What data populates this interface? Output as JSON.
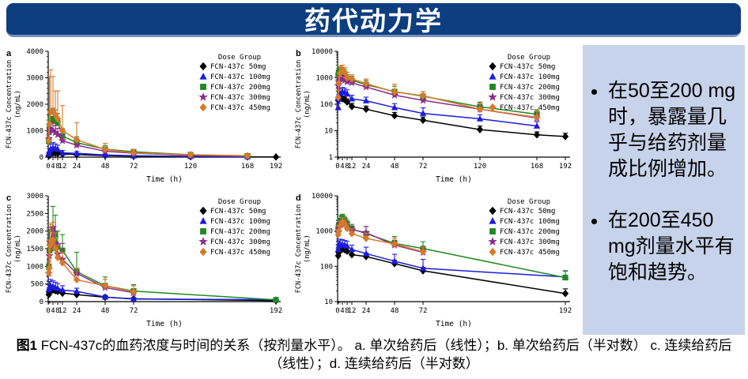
{
  "banner": {
    "title": "药代动力学"
  },
  "colors": {
    "banner_bg": "#0d3e80",
    "banner_text": "#ffffff",
    "sidebar_bg": "#c7d3ea",
    "dose_50mg": "#000000",
    "dose_100mg": "#1c1ce0",
    "dose_200mg": "#1f8a1f",
    "dose_300mg": "#8b2d8b",
    "dose_450mg": "#d7792b"
  },
  "sidebar": {
    "bullets": [
      "在50至200 mg时，暴露量几乎与给药剂量成比例增加。",
      "在200至450 mg剂量水平有饱和趋势。"
    ]
  },
  "caption": {
    "label": "图1",
    "text": " FCN-437c的血药浓度与时间的关系（按剂量水平）。 a. 单次给药后（线性）；b. 单次给药后（半对数）  c. 连续给药后（线性）；d. 连续给药后（半对数）"
  },
  "chart_data": [
    {
      "panel": "a",
      "type": "line",
      "x_scale": "linear",
      "y_scale": "linear",
      "xlabel": "Time (h)",
      "ylabel": [
        "FCN-437c Concentration",
        "(ng/mL)"
      ],
      "xlim": [
        0,
        196
      ],
      "ylim": [
        0,
        4000
      ],
      "x_ticks": [
        0,
        4,
        8,
        12,
        24,
        48,
        72,
        120,
        168,
        192
      ],
      "x_minor": [
        0.5,
        1,
        2,
        6,
        10
      ],
      "y_ticks": [
        0,
        1000,
        2000,
        3000,
        4000
      ],
      "y_minor_step": 200,
      "legend_title": "Dose Group",
      "series": [
        {
          "name": "FCN-437c 50mg",
          "color": "#000000",
          "marker": "diamond",
          "x": [
            0.5,
            1,
            2,
            4,
            6,
            8,
            12,
            24,
            48,
            72,
            120,
            168,
            192
          ],
          "y": [
            60,
            95,
            130,
            160,
            150,
            140,
            120,
            100,
            60,
            38,
            20,
            10,
            6
          ],
          "eu": [
            20,
            30,
            45,
            50,
            45,
            40,
            35,
            30,
            20,
            12,
            8,
            5,
            3
          ]
        },
        {
          "name": "FCN-437c 100mg",
          "color": "#1c1ce0",
          "marker": "triangle",
          "x": [
            0.5,
            1,
            2,
            4,
            6,
            8,
            12,
            24,
            48,
            72,
            120,
            168
          ],
          "y": [
            120,
            210,
            300,
            350,
            330,
            300,
            160,
            145,
            80,
            50,
            28,
            15
          ],
          "eu": [
            60,
            110,
            190,
            200,
            170,
            150,
            90,
            70,
            45,
            25,
            15,
            8
          ]
        },
        {
          "name": "FCN-437c 200mg",
          "color": "#1f8a1f",
          "marker": "square",
          "x": [
            0.5,
            1,
            2,
            4,
            6,
            8,
            12,
            24,
            48,
            72,
            120,
            168
          ],
          "y": [
            600,
            1050,
            1380,
            1450,
            1400,
            1300,
            800,
            550,
            300,
            200,
            90,
            45
          ],
          "eu": [
            250,
            350,
            420,
            400,
            380,
            350,
            280,
            220,
            140,
            90,
            40,
            20
          ]
        },
        {
          "name": "FCN-437c 300mg",
          "color": "#8b2d8b",
          "marker": "star",
          "x": [
            0.5,
            1,
            2,
            4,
            6,
            8,
            12,
            24,
            48,
            72,
            120,
            168
          ],
          "y": [
            700,
            950,
            1050,
            1000,
            930,
            850,
            620,
            450,
            220,
            150,
            70,
            35
          ],
          "eu": [
            200,
            250,
            300,
            280,
            260,
            240,
            200,
            160,
            90,
            60,
            30,
            15
          ]
        },
        {
          "name": "FCN-437c 450mg",
          "color": "#d7792b",
          "marker": "diamond",
          "x": [
            0.5,
            1,
            2,
            4,
            6,
            8,
            12,
            24,
            48,
            72,
            120,
            168
          ],
          "y": [
            620,
            1250,
            1700,
            1750,
            1600,
            1450,
            1000,
            660,
            290,
            160,
            90,
            50
          ],
          "eu": [
            600,
            1800,
            1600,
            1300,
            900,
            1050,
            950,
            640,
            230,
            120,
            60,
            30
          ]
        }
      ]
    },
    {
      "panel": "b",
      "type": "line",
      "x_scale": "linear",
      "y_scale": "log",
      "xlabel": "Time (h)",
      "ylabel": [
        "FCN-437c Concentration",
        "(ng/mL)"
      ],
      "xlim": [
        0,
        196
      ],
      "ylim": [
        1,
        10000
      ],
      "x_ticks": [
        0,
        4,
        8,
        12,
        24,
        48,
        72,
        120,
        168,
        192
      ],
      "x_minor": [
        0.5,
        1,
        2,
        6,
        10
      ],
      "y_ticks": [
        1,
        10,
        100,
        1000,
        10000
      ],
      "legend_title": "Dose Group",
      "series": [
        {
          "name": "FCN-437c 50mg",
          "color": "#000000",
          "marker": "diamond",
          "x": [
            0.5,
            1,
            2,
            4,
            6,
            8,
            12,
            24,
            48,
            72,
            120,
            168,
            192
          ],
          "y": [
            140,
            158,
            165,
            160,
            148,
            122,
            82,
            65,
            37,
            25,
            11,
            7,
            6
          ],
          "eu": [
            40,
            45,
            50,
            45,
            40,
            35,
            25,
            20,
            12,
            8,
            4,
            2,
            2
          ]
        },
        {
          "name": "FCN-437c 100mg",
          "color": "#1c1ce0",
          "marker": "triangle",
          "x": [
            0.5,
            1,
            2,
            4,
            6,
            8,
            12,
            24,
            48,
            72,
            120,
            168
          ],
          "y": [
            75,
            160,
            260,
            300,
            280,
            250,
            160,
            135,
            75,
            45,
            28,
            15
          ],
          "eu": [
            30,
            70,
            120,
            130,
            120,
            100,
            60,
            50,
            30,
            28,
            12,
            7
          ]
        },
        {
          "name": "FCN-437c 200mg",
          "color": "#1f8a1f",
          "marker": "square",
          "x": [
            0.5,
            1,
            2,
            4,
            6,
            8,
            12,
            24,
            48,
            72,
            120,
            168
          ],
          "y": [
            1250,
            1500,
            1600,
            1550,
            1400,
            900,
            800,
            550,
            300,
            200,
            80,
            42
          ],
          "eu": [
            600,
            800,
            900,
            800,
            700,
            400,
            350,
            250,
            180,
            100,
            40,
            20
          ]
        },
        {
          "name": "FCN-437c 300mg",
          "color": "#8b2d8b",
          "marker": "star",
          "x": [
            0.5,
            1,
            2,
            4,
            6,
            8,
            12,
            24,
            48,
            72,
            120,
            168
          ],
          "y": [
            500,
            750,
            900,
            870,
            800,
            700,
            650,
            450,
            220,
            140,
            65,
            30
          ],
          "eu": [
            200,
            300,
            350,
            330,
            300,
            260,
            240,
            180,
            90,
            60,
            30,
            14
          ]
        },
        {
          "name": "FCN-437c 450mg",
          "color": "#d7792b",
          "marker": "diamond",
          "x": [
            0.5,
            1,
            2,
            4,
            6,
            8,
            12,
            24,
            48,
            72,
            120,
            168
          ],
          "y": [
            180,
            620,
            1500,
            1900,
            1600,
            1000,
            900,
            600,
            290,
            210,
            65,
            32
          ],
          "eu": [
            150,
            500,
            1300,
            1100,
            900,
            600,
            400,
            300,
            280,
            90,
            45,
            25
          ]
        }
      ]
    },
    {
      "panel": "c",
      "type": "line",
      "x_scale": "linear",
      "y_scale": "linear",
      "xlabel": "Time (h)",
      "ylabel": [
        "FCN-437c Concentration",
        "(ng/mL)"
      ],
      "xlim": [
        0,
        196
      ],
      "ylim": [
        0,
        3000
      ],
      "x_ticks": [
        0,
        4,
        8,
        12,
        24,
        48,
        72,
        192
      ],
      "x_minor": [
        0.5,
        1,
        2,
        6,
        10
      ],
      "y_ticks": [
        0,
        500,
        1000,
        1500,
        2000,
        2500,
        3000
      ],
      "y_minor_step": 100,
      "legend_title": "Dose Group",
      "series": [
        {
          "name": "FCN-437c 50mg",
          "color": "#000000",
          "marker": "diamond",
          "x": [
            0.5,
            1,
            2,
            4,
            6,
            8,
            12,
            24,
            48,
            72,
            192
          ],
          "y": [
            200,
            260,
            310,
            330,
            310,
            290,
            240,
            200,
            125,
            80,
            30
          ],
          "eu": [
            60,
            80,
            90,
            90,
            80,
            80,
            70,
            60,
            40,
            25,
            10
          ]
        },
        {
          "name": "FCN-437c 100mg",
          "color": "#1c1ce0",
          "marker": "triangle",
          "x": [
            0.5,
            1,
            2,
            4,
            6,
            8,
            12,
            24,
            48,
            72,
            192
          ],
          "y": [
            340,
            400,
            450,
            430,
            400,
            370,
            330,
            290,
            130,
            75,
            55
          ],
          "eu": [
            140,
            170,
            180,
            160,
            150,
            140,
            120,
            90,
            50,
            30,
            20
          ]
        },
        {
          "name": "FCN-437c 200mg",
          "color": "#1f8a1f",
          "marker": "square",
          "x": [
            0.5,
            1,
            2,
            4,
            6,
            8,
            12,
            24,
            48,
            72,
            192
          ],
          "y": [
            1000,
            1450,
            1500,
            2050,
            1900,
            1550,
            1450,
            850,
            450,
            300,
            50
          ],
          "eu": [
            450,
            600,
            700,
            650,
            550,
            450,
            450,
            550,
            250,
            180,
            20
          ]
        },
        {
          "name": "FCN-437c 300mg",
          "color": "#8b2d8b",
          "marker": "star",
          "x": [
            0.5,
            1,
            2,
            4,
            6,
            8,
            12,
            24,
            48,
            72
          ],
          "y": [
            800,
            1300,
            1600,
            2100,
            1650,
            1350,
            1200,
            800,
            400,
            250
          ],
          "eu": [
            350,
            450,
            500,
            150,
            350,
            300,
            450,
            150,
            90,
            60
          ]
        },
        {
          "name": "FCN-437c 450mg",
          "color": "#d7792b",
          "marker": "diamond",
          "x": [
            0.5,
            1,
            2,
            4,
            6,
            8,
            12,
            24,
            48,
            72
          ],
          "y": [
            820,
            950,
            1600,
            1750,
            1500,
            1250,
            1100,
            620,
            450,
            280
          ],
          "eu": [
            900,
            800,
            600,
            500,
            450,
            350,
            300,
            330,
            180,
            170
          ]
        }
      ]
    },
    {
      "panel": "d",
      "type": "line",
      "x_scale": "linear",
      "y_scale": "log",
      "xlabel": "Time (h)",
      "ylabel": [
        "FCN-437c Concentration",
        "(ng/mL)"
      ],
      "xlim": [
        0,
        196
      ],
      "ylim": [
        10,
        10000
      ],
      "x_ticks": [
        0,
        4,
        8,
        12,
        24,
        48,
        72,
        192
      ],
      "x_minor": [
        0.5,
        1,
        2,
        6,
        10
      ],
      "y_ticks": [
        10,
        100,
        1000,
        10000
      ],
      "legend_title": "Dose Group",
      "series": [
        {
          "name": "FCN-437c 50mg",
          "color": "#000000",
          "marker": "diamond",
          "x": [
            0.5,
            1,
            2,
            4,
            6,
            8,
            12,
            24,
            48,
            72,
            192
          ],
          "y": [
            200,
            245,
            290,
            310,
            295,
            270,
            215,
            190,
            120,
            75,
            17
          ],
          "eu": [
            50,
            60,
            70,
            70,
            65,
            60,
            50,
            45,
            30,
            18,
            6
          ]
        },
        {
          "name": "FCN-437c 100mg",
          "color": "#1c1ce0",
          "marker": "triangle",
          "x": [
            0.5,
            1,
            2,
            4,
            6,
            8,
            12,
            24,
            48,
            72,
            192
          ],
          "y": [
            300,
            380,
            430,
            420,
            400,
            380,
            300,
            230,
            140,
            88,
            50
          ],
          "eu": [
            120,
            150,
            160,
            150,
            140,
            130,
            100,
            120,
            80,
            70,
            25
          ]
        },
        {
          "name": "FCN-437c 200mg",
          "color": "#1f8a1f",
          "marker": "square",
          "x": [
            0.5,
            1,
            2,
            4,
            6,
            8,
            12,
            24,
            48,
            72,
            192
          ],
          "y": [
            1100,
            1500,
            2000,
            2400,
            2000,
            1600,
            1150,
            850,
            450,
            320,
            48
          ],
          "eu": [
            400,
            600,
            700,
            600,
            500,
            450,
            400,
            500,
            250,
            180,
            25
          ]
        },
        {
          "name": "FCN-437c 300mg",
          "color": "#8b2d8b",
          "marker": "star",
          "x": [
            0.5,
            1,
            2,
            4,
            6,
            8,
            12,
            24,
            48,
            72
          ],
          "y": [
            900,
            1250,
            1500,
            1700,
            1550,
            1300,
            1100,
            900,
            400,
            250
          ],
          "eu": [
            300,
            400,
            450,
            400,
            380,
            350,
            300,
            450,
            150,
            80
          ]
        },
        {
          "name": "FCN-437c 450mg",
          "color": "#d7792b",
          "marker": "diamond",
          "x": [
            0.5,
            1,
            2,
            4,
            6,
            8,
            12,
            24,
            48,
            72
          ],
          "y": [
            800,
            1000,
            1400,
            1800,
            1600,
            1200,
            850,
            620,
            430,
            260
          ],
          "eu": [
            300,
            400,
            500,
            600,
            500,
            400,
            300,
            250,
            200,
            90
          ]
        }
      ]
    }
  ]
}
